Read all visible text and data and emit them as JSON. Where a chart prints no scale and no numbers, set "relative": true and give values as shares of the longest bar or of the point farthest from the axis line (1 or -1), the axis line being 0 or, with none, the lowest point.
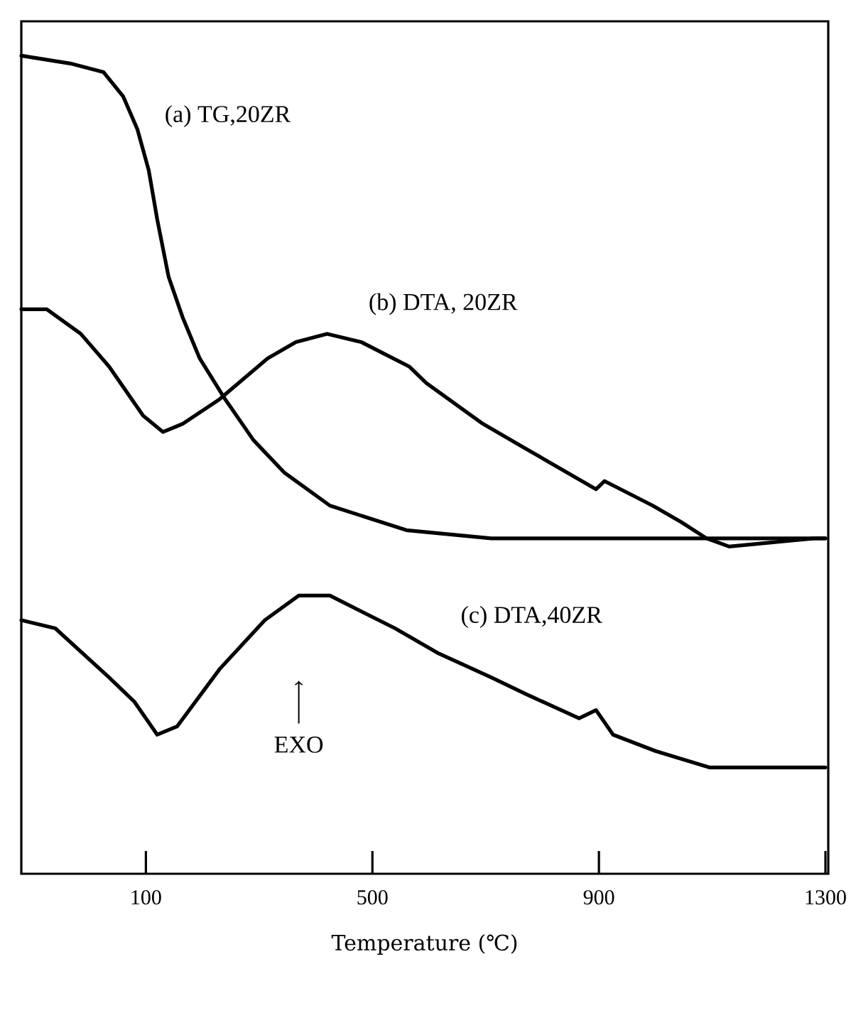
{
  "chart_data": {
    "type": "line",
    "relative": true,
    "xlabel": "Temperature (℃)",
    "xlim": [
      -120,
      1305
    ],
    "xticks": [
      100,
      500,
      900,
      1300
    ],
    "tick_labels": "x",
    "grid": false,
    "legend": false,
    "marker": "none",
    "line_style": "solid",
    "annotations": [
      "EXO"
    ],
    "series": [
      {
        "name": "(a) TG,20ZR",
        "color": "#000000",
        "x": [
          -120,
          -30,
          25,
          60,
          85,
          105,
          120,
          140,
          165,
          195,
          240,
          290,
          345,
          425,
          560,
          710,
          905,
          1095,
          1300
        ],
        "values": [
          1.0,
          0.99,
          0.98,
          0.95,
          0.91,
          0.86,
          0.8,
          0.73,
          0.68,
          0.63,
          0.58,
          0.53,
          0.49,
          0.45,
          0.42,
          0.41,
          0.41,
          0.41,
          0.41
        ]
      },
      {
        "name": "(b) DTA, 20ZR",
        "color": "#000000",
        "x": [
          -120,
          -75,
          -15,
          35,
          95,
          130,
          165,
          230,
          315,
          365,
          420,
          480,
          565,
          595,
          695,
          770,
          895,
          910,
          995,
          1045,
          1090,
          1130,
          1280,
          1300
        ],
        "values": [
          0.69,
          0.69,
          0.66,
          0.62,
          0.56,
          0.54,
          0.55,
          0.58,
          0.63,
          0.65,
          0.66,
          0.65,
          0.62,
          0.6,
          0.55,
          0.52,
          0.47,
          0.48,
          0.45,
          0.43,
          0.41,
          0.4,
          0.41,
          0.41
        ]
      },
      {
        "name": "(c) DTA,40ZR",
        "color": "#000000",
        "x": [
          -120,
          -60,
          35,
          80,
          120,
          155,
          230,
          310,
          370,
          425,
          540,
          615,
          710,
          770,
          865,
          895,
          925,
          1000,
          1095,
          1175,
          1300
        ],
        "values": [
          0.31,
          0.3,
          0.24,
          0.21,
          0.17,
          0.18,
          0.25,
          0.31,
          0.34,
          0.34,
          0.3,
          0.27,
          0.24,
          0.22,
          0.19,
          0.2,
          0.17,
          0.15,
          0.13,
          0.13,
          0.13
        ]
      }
    ]
  }
}
